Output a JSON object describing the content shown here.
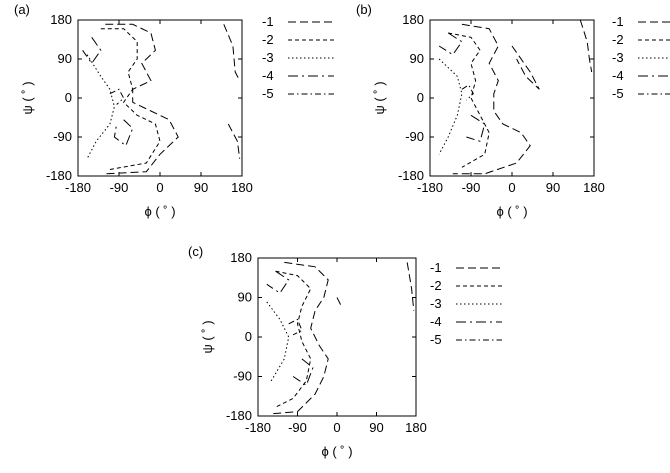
{
  "chart_data": [
    {
      "panel": "(a)",
      "type": "contour",
      "xlabel": "ϕ ( ˚ )",
      "ylabel": "ψ ( ˚ )",
      "xlim": [
        -180,
        180
      ],
      "ylim": [
        -180,
        180
      ],
      "xticks": [
        "-180",
        "-90",
        "0",
        "90",
        "180"
      ],
      "yticks": [
        "180",
        "90",
        "0",
        "-90",
        "-180"
      ],
      "legend": [
        "-1",
        "-2",
        "-3",
        "-4",
        "-5"
      ],
      "contours": [
        {
          "level": "-1",
          "points": [
            [
              -120,
              170
            ],
            [
              -60,
              170
            ],
            [
              -20,
              150
            ],
            [
              -10,
              110
            ],
            [
              -40,
              80
            ],
            [
              -20,
              40
            ],
            [
              -60,
              20
            ],
            [
              -60,
              -10
            ],
            [
              -20,
              -30
            ],
            [
              20,
              -50
            ],
            [
              40,
              -90
            ],
            [
              0,
              -130
            ],
            [
              -30,
              -170
            ],
            [
              -120,
              -175
            ]
          ]
        },
        {
          "level": "-1",
          "points": [
            [
              140,
              170
            ],
            [
              160,
              120
            ],
            [
              165,
              60
            ],
            [
              175,
              40
            ]
          ]
        },
        {
          "level": "-1",
          "points": [
            [
              150,
              -60
            ],
            [
              170,
              -100
            ],
            [
              175,
              -140
            ]
          ]
        },
        {
          "level": "-2",
          "points": [
            [
              -130,
              160
            ],
            [
              -80,
              160
            ],
            [
              -50,
              130
            ],
            [
              -50,
              90
            ],
            [
              -70,
              60
            ],
            [
              -60,
              20
            ],
            [
              -80,
              -10
            ],
            [
              -50,
              -40
            ],
            [
              -10,
              -60
            ],
            [
              0,
              -100
            ],
            [
              -30,
              -150
            ],
            [
              -110,
              -165
            ]
          ]
        },
        {
          "level": "-3",
          "points": [
            [
              -160,
              100
            ],
            [
              -130,
              50
            ],
            [
              -110,
              20
            ],
            [
              -100,
              -20
            ],
            [
              -110,
              -60
            ],
            [
              -140,
              -100
            ],
            [
              -160,
              -140
            ]
          ]
        },
        {
          "level": "-4",
          "points": [
            [
              -150,
              140
            ],
            [
              -130,
              110
            ],
            [
              -150,
              80
            ],
            [
              -170,
              110
            ]
          ]
        },
        {
          "level": "-4",
          "points": [
            [
              -80,
              -50
            ],
            [
              -60,
              -70
            ],
            [
              -75,
              -110
            ],
            [
              -100,
              -90
            ],
            [
              -95,
              -60
            ]
          ]
        },
        {
          "level": "-5",
          "points": [
            [
              -110,
              10
            ],
            [
              -90,
              20
            ],
            [
              -80,
              0
            ],
            [
              -95,
              -15
            ]
          ]
        }
      ]
    },
    {
      "panel": "(b)",
      "type": "contour",
      "xlabel": "ϕ ( ˚ )",
      "ylabel": "ψ ( ˚ )",
      "xlim": [
        -180,
        180
      ],
      "ylim": [
        -180,
        180
      ],
      "xticks": [
        "-180",
        "-90",
        "0",
        "90",
        "180"
      ],
      "yticks": [
        "180",
        "90",
        "0",
        "-90",
        "-180"
      ],
      "legend": [
        "-1",
        "-2",
        "-3",
        "-4",
        "-5"
      ],
      "contours": [
        {
          "level": "-1",
          "points": [
            [
              -110,
              170
            ],
            [
              -50,
              160
            ],
            [
              -30,
              120
            ],
            [
              -50,
              80
            ],
            [
              -30,
              40
            ],
            [
              -40,
              10
            ],
            [
              -40,
              -30
            ],
            [
              -20,
              -60
            ],
            [
              20,
              -80
            ],
            [
              40,
              -110
            ],
            [
              10,
              -150
            ],
            [
              -60,
              -175
            ],
            [
              -130,
              -175
            ]
          ]
        },
        {
          "level": "-1",
          "points": [
            [
              0,
              120
            ],
            [
              40,
              60
            ],
            [
              60,
              20
            ],
            [
              30,
              50
            ],
            [
              10,
              90
            ]
          ]
        },
        {
          "level": "-1",
          "points": [
            [
              150,
              180
            ],
            [
              165,
              130
            ],
            [
              170,
              90
            ],
            [
              175,
              60
            ]
          ]
        },
        {
          "level": "-2",
          "points": [
            [
              -140,
              150
            ],
            [
              -90,
              140
            ],
            [
              -70,
              110
            ],
            [
              -90,
              80
            ],
            [
              -80,
              40
            ],
            [
              -90,
              0
            ],
            [
              -70,
              -40
            ],
            [
              -50,
              -80
            ],
            [
              -60,
              -130
            ],
            [
              -110,
              -160
            ]
          ]
        },
        {
          "level": "-3",
          "points": [
            [
              -160,
              90
            ],
            [
              -120,
              50
            ],
            [
              -110,
              10
            ],
            [
              -120,
              -40
            ],
            [
              -140,
              -90
            ],
            [
              -160,
              -130
            ]
          ]
        },
        {
          "level": "-4",
          "points": [
            [
              -140,
              150
            ],
            [
              -110,
              130
            ],
            [
              -130,
              100
            ],
            [
              -160,
              120
            ]
          ]
        },
        {
          "level": "-4",
          "points": [
            [
              -90,
              -40
            ],
            [
              -60,
              -60
            ],
            [
              -70,
              -100
            ],
            [
              -100,
              -90
            ]
          ]
        },
        {
          "level": "-5",
          "points": [
            [
              -110,
              20
            ],
            [
              -95,
              30
            ],
            [
              -85,
              10
            ],
            [
              -100,
              -5
            ]
          ]
        }
      ]
    },
    {
      "panel": "(c)",
      "type": "contour",
      "xlabel": "ϕ ( ˚ )",
      "ylabel": "ψ ( ˚ )",
      "xlim": [
        -180,
        180
      ],
      "ylim": [
        -180,
        180
      ],
      "xticks": [
        "-180",
        "-90",
        "0",
        "90",
        "180"
      ],
      "yticks": [
        "180",
        "90",
        "0",
        "-90",
        "-180"
      ],
      "legend": [
        "-1",
        "-2",
        "-3",
        "-4",
        "-5"
      ],
      "contours": [
        {
          "level": "-1",
          "points": [
            [
              -120,
              170
            ],
            [
              -50,
              160
            ],
            [
              -20,
              130
            ],
            [
              -30,
              90
            ],
            [
              -50,
              60
            ],
            [
              -60,
              20
            ],
            [
              -40,
              -20
            ],
            [
              -20,
              -50
            ],
            [
              -30,
              -90
            ],
            [
              -50,
              -130
            ],
            [
              -90,
              -170
            ],
            [
              -150,
              -175
            ]
          ]
        },
        {
          "level": "-1",
          "points": [
            [
              160,
              170
            ],
            [
              170,
              110
            ],
            [
              175,
              60
            ]
          ]
        },
        {
          "level": "-1",
          "points": [
            [
              0,
              90
            ],
            [
              10,
              70
            ]
          ]
        },
        {
          "level": "-2",
          "points": [
            [
              -140,
              150
            ],
            [
              -90,
              140
            ],
            [
              -60,
              110
            ],
            [
              -80,
              70
            ],
            [
              -90,
              30
            ],
            [
              -80,
              -10
            ],
            [
              -60,
              -50
            ],
            [
              -70,
              -100
            ],
            [
              -100,
              -140
            ],
            [
              -140,
              -160
            ]
          ]
        },
        {
          "level": "-3",
          "points": [
            [
              -160,
              80
            ],
            [
              -130,
              40
            ],
            [
              -110,
              0
            ],
            [
              -120,
              -50
            ],
            [
              -150,
              -100
            ]
          ]
        },
        {
          "level": "-4",
          "points": [
            [
              -140,
              150
            ],
            [
              -110,
              130
            ],
            [
              -130,
              100
            ],
            [
              -160,
              120
            ]
          ]
        },
        {
          "level": "-4",
          "points": [
            [
              -80,
              -50
            ],
            [
              -55,
              -70
            ],
            [
              -70,
              -110
            ],
            [
              -100,
              -90
            ]
          ]
        },
        {
          "level": "-5",
          "points": [
            [
              -110,
              30
            ],
            [
              -90,
              40
            ],
            [
              -80,
              15
            ],
            [
              -100,
              5
            ]
          ]
        }
      ]
    }
  ],
  "styles": {
    "-1": "8,4",
    "-2": "4,3",
    "-3": "1.5,2.5",
    "-4": "10,4,2,4",
    "-5": "6,3,1.5,3"
  }
}
